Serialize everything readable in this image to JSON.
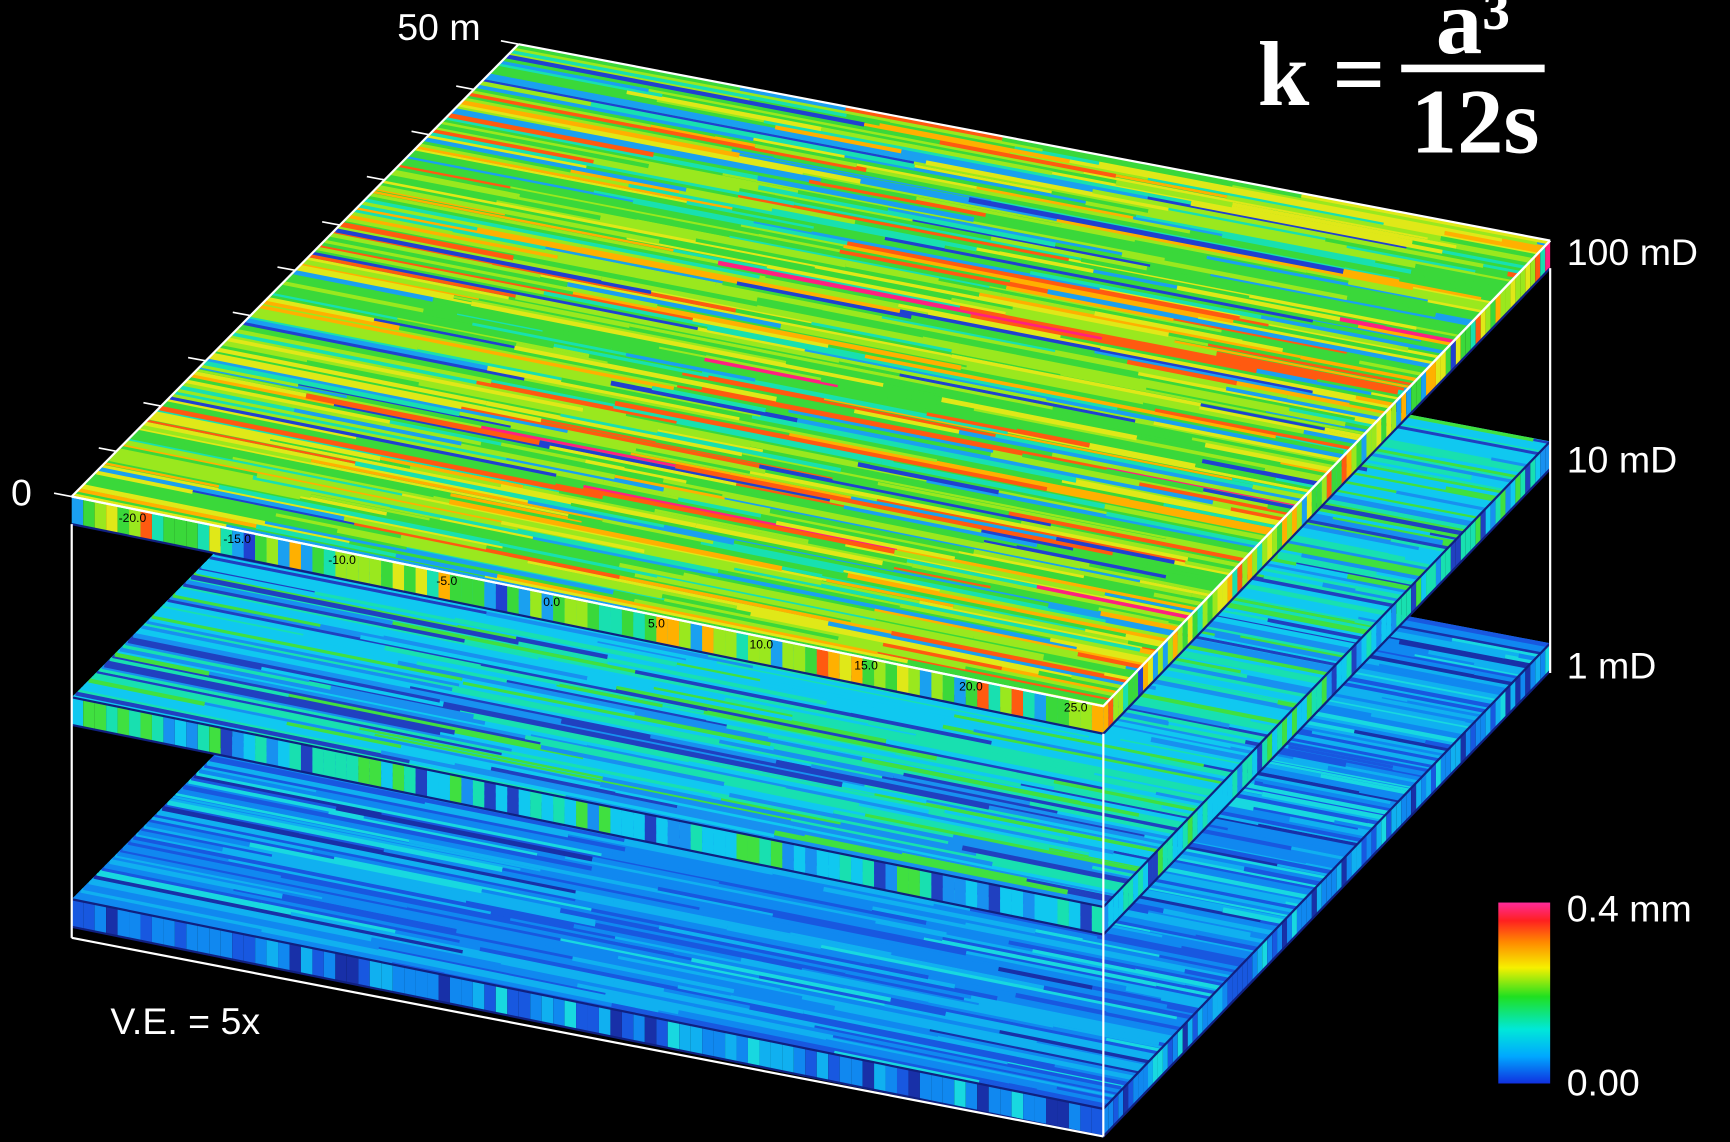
{
  "formula": {
    "lhs": "k =",
    "numerator": "a³",
    "denominator": "12s"
  },
  "axis": {
    "y_top": "50 m",
    "y_bottom": "0",
    "x_ticks": [
      "-20.0",
      "-15.0",
      "-10.0",
      "-5.0",
      "0.0",
      "5.0",
      "10.0",
      "15.0",
      "20.0",
      "25.0"
    ]
  },
  "layers": [
    {
      "label": "100 mD"
    },
    {
      "label": "10 mD"
    },
    {
      "label": "1 mD"
    }
  ],
  "colorbar": {
    "max": "0.4 mm",
    "min": "0.00"
  },
  "note": "V.E. = 5x"
}
